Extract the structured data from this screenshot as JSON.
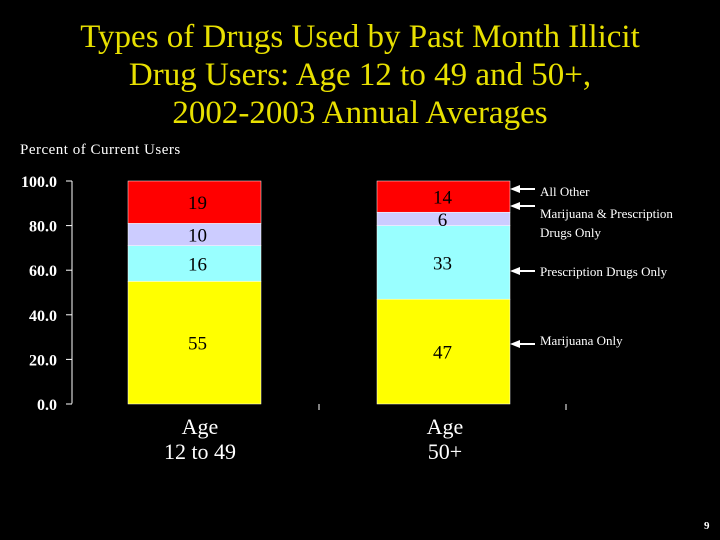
{
  "title_lines": [
    "Types of Drugs Used by Past Month Illicit",
    "Drug Users: Age 12 to 49 and 50+,",
    "2002-2003 Annual Averages"
  ],
  "page_number": "9",
  "colors": {
    "marijuana_only": "#ffff00",
    "prescription_only": "#99ffff",
    "marijuana_prescription": "#ccccff",
    "all_other": "#ff0000",
    "title": "#e8e000"
  },
  "chart_data": {
    "type": "bar",
    "stacked": true,
    "ylabel": "Percent of Current Users",
    "ylim": [
      0,
      100
    ],
    "yticks": [
      "0.0",
      "20.0",
      "40.0",
      "60.0",
      "80.0",
      "100.0"
    ],
    "categories": [
      {
        "line1": "Age",
        "line2": "12 to 49"
      },
      {
        "line1": "Age",
        "line2": "50+"
      }
    ],
    "series": [
      {
        "name": "Marijuana Only",
        "values": [
          55,
          47
        ],
        "labels": [
          "55",
          "47"
        ]
      },
      {
        "name": "Prescription Drugs Only",
        "values": [
          16,
          33
        ],
        "labels": [
          "16",
          "33"
        ]
      },
      {
        "name": "Marijuana & Prescription Drugs Only",
        "values": [
          10,
          6
        ],
        "labels": [
          "10",
          "6"
        ]
      },
      {
        "name": "All Other",
        "values": [
          19,
          14
        ],
        "labels": [
          "19",
          "14"
        ]
      }
    ],
    "legend_lines": {
      "All Other": [
        "All Other"
      ],
      "Marijuana & Prescription Drugs Only": [
        "Marijuana & Prescription",
        "Drugs Only"
      ],
      "Prescription Drugs Only": [
        "Prescription Drugs Only"
      ],
      "Marijuana Only": [
        "Marijuana Only"
      ]
    },
    "legend_placement": "right"
  }
}
